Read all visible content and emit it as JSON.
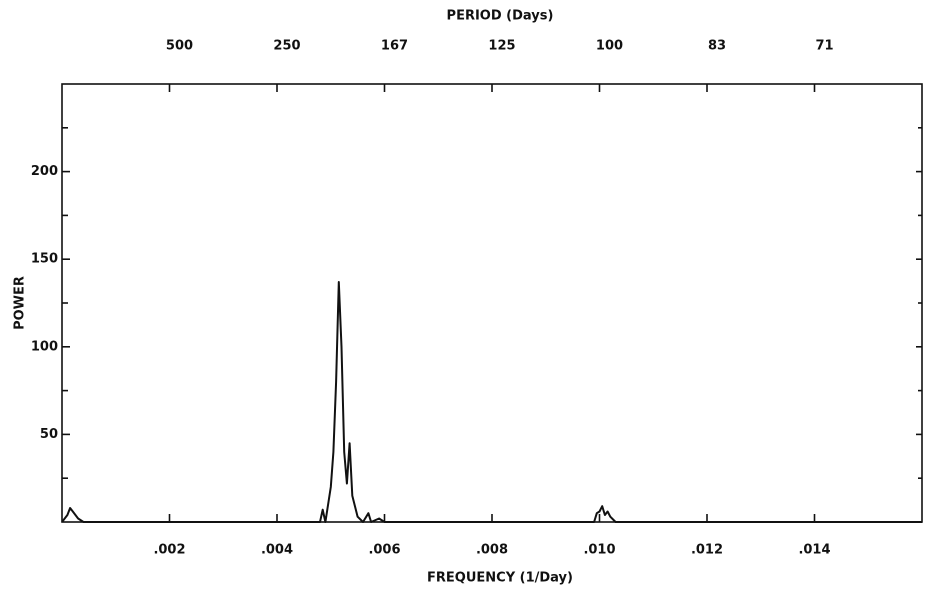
{
  "chart_data": {
    "type": "line",
    "x_label": "FREQUENCY (1/Day)",
    "x2_label": "PERIOD (Days)",
    "y_label": "POWER",
    "xlim": [
      0,
      0.016
    ],
    "ylim": [
      0,
      250
    ],
    "xticks": [
      {
        "value": 0.002,
        "label": ".002"
      },
      {
        "value": 0.004,
        "label": ".004"
      },
      {
        "value": 0.006,
        "label": ".006"
      },
      {
        "value": 0.008,
        "label": ".008"
      },
      {
        "value": 0.01,
        "label": ".010"
      },
      {
        "value": 0.012,
        "label": ".012"
      },
      {
        "value": 0.014,
        "label": ".014"
      }
    ],
    "x2ticks": [
      {
        "value": 0.002,
        "label": "500"
      },
      {
        "value": 0.004,
        "label": "250"
      },
      {
        "value": 0.006,
        "label": "167"
      },
      {
        "value": 0.008,
        "label": "125"
      },
      {
        "value": 0.01,
        "label": "100"
      },
      {
        "value": 0.012,
        "label": "83"
      },
      {
        "value": 0.014,
        "label": "71"
      }
    ],
    "yticks": [
      50,
      100,
      150,
      200
    ],
    "yminor_ticks": [
      25,
      75,
      125,
      175,
      225
    ],
    "series": [
      {
        "color": "#111111",
        "x": [
          0,
          0.0001,
          0.00015,
          0.0002,
          0.0003,
          0.0004,
          0.0048,
          0.00485,
          0.0049,
          0.005,
          0.00505,
          0.0051,
          0.00515,
          0.0052,
          0.00525,
          0.0053,
          0.00535,
          0.0054,
          0.0055,
          0.0056,
          0.0057,
          0.00575,
          0.0059,
          0.006,
          0.0099,
          0.00995,
          0.01,
          0.01005,
          0.0101,
          0.01015,
          0.0102,
          0.0103,
          0.016
        ],
        "values": [
          0,
          4,
          8,
          6,
          2,
          0,
          0,
          7,
          0,
          20,
          40,
          80,
          137,
          100,
          40,
          22,
          45,
          15,
          3,
          0,
          5,
          0,
          2,
          0,
          0,
          5,
          6,
          9,
          4,
          6,
          3,
          0,
          0
        ]
      }
    ]
  }
}
